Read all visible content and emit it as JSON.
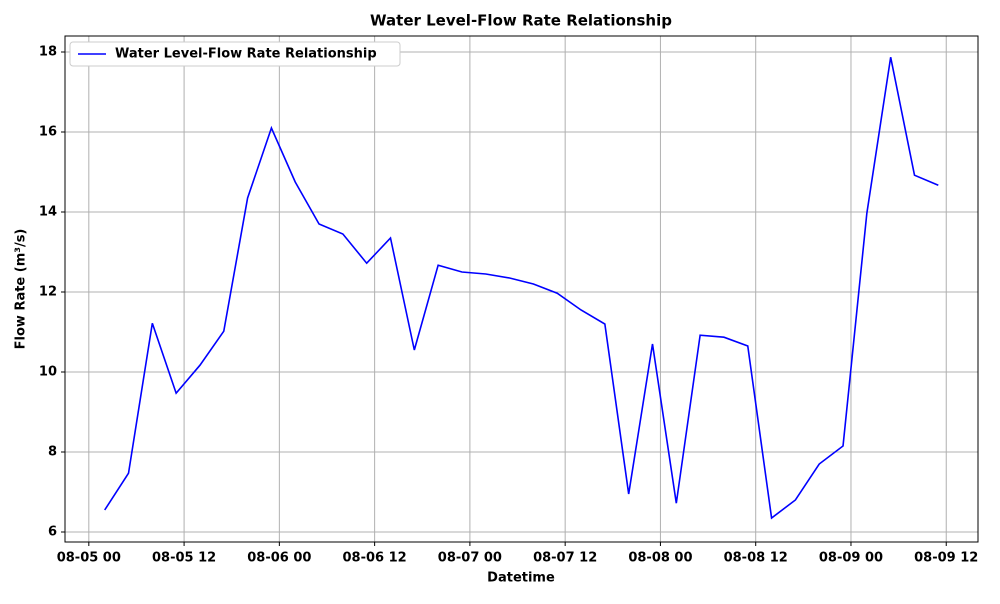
{
  "chart_data": {
    "type": "line",
    "title": "Water Level-Flow Rate Relationship",
    "x_label": "Datetime",
    "y_label": "Flow Rate (m³/s)",
    "x": [
      "08-05 02",
      "08-05 05",
      "08-05 08",
      "08-05 11",
      "08-05 14",
      "08-05 17",
      "08-05 20",
      "08-05 23",
      "08-06 02",
      "08-06 05",
      "08-06 08",
      "08-06 11",
      "08-06 14",
      "08-06 17",
      "08-06 20",
      "08-06 23",
      "08-07 02",
      "08-07 05",
      "08-07 08",
      "08-07 11",
      "08-07 14",
      "08-07 17",
      "08-07 20",
      "08-07 23",
      "08-08 02",
      "08-08 05",
      "08-08 08",
      "08-08 11",
      "08-08 14",
      "08-08 17",
      "08-08 20",
      "08-08 23",
      "08-09 02",
      "08-09 05",
      "08-09 08",
      "08-09 11"
    ],
    "series": [
      {
        "name": "Water Level-Flow Rate Relationship",
        "color": "#0000ff",
        "values": [
          6.55,
          7.47,
          11.22,
          9.47,
          10.17,
          11.02,
          14.35,
          16.1,
          14.75,
          13.7,
          13.45,
          12.72,
          13.35,
          10.55,
          12.67,
          12.5,
          12.45,
          12.35,
          12.2,
          11.97,
          11.55,
          11.2,
          6.95,
          10.7,
          6.72,
          10.92,
          10.87,
          10.65,
          6.35,
          6.8,
          7.7,
          8.15,
          13.97,
          17.87,
          14.92,
          14.67
        ]
      }
    ],
    "xlim": [
      "08-04 21",
      "08-09 16"
    ],
    "xticks": [
      "08-05 00",
      "08-05 12",
      "08-06 00",
      "08-06 12",
      "08-07 00",
      "08-07 12",
      "08-08 00",
      "08-08 12",
      "08-09 00",
      "08-09 12"
    ],
    "ylim": [
      5.75,
      18.4
    ],
    "yticks": [
      6,
      8,
      10,
      12,
      14,
      16,
      18
    ],
    "grid": true,
    "legend": "upper left"
  }
}
